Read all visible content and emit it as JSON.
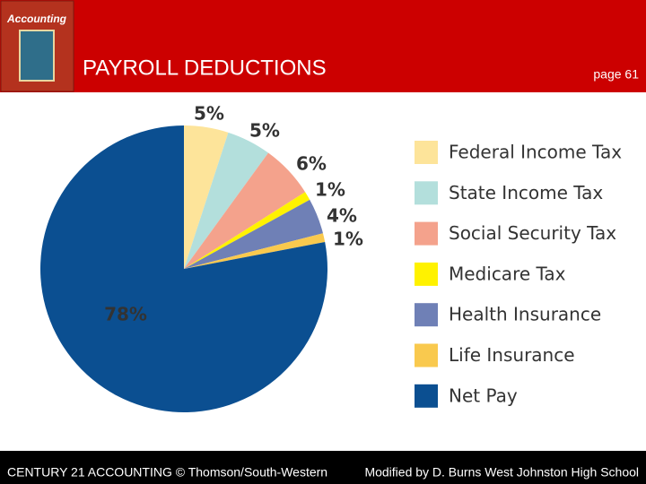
{
  "cover": {
    "title": "Accounting"
  },
  "chart_data": {
    "type": "pie",
    "title": "PAYROLL DEDUCTIONS",
    "categories": [
      "Federal Income Tax",
      "State Income Tax",
      "Social Security Tax",
      "Medicare Tax",
      "Health Insurance",
      "Life Insurance",
      "Net Pay"
    ],
    "values": [
      5,
      5,
      6,
      1,
      4,
      1,
      78
    ],
    "value_labels": [
      "5%",
      "5%",
      "6%",
      "1%",
      "4%",
      "1%",
      "78%"
    ],
    "colors": [
      "#fde49a",
      "#b3dfdc",
      "#f4a28c",
      "#fff200",
      "#6f80b6",
      "#f9c94e",
      "#0b4f91"
    ],
    "legend": "right"
  },
  "header": {
    "page": "page 61"
  },
  "footer": {
    "left": "CENTURY 21 ACCOUNTING © Thomson/South-Western",
    "right": "Modified by D. Burns West Johnston High School"
  }
}
